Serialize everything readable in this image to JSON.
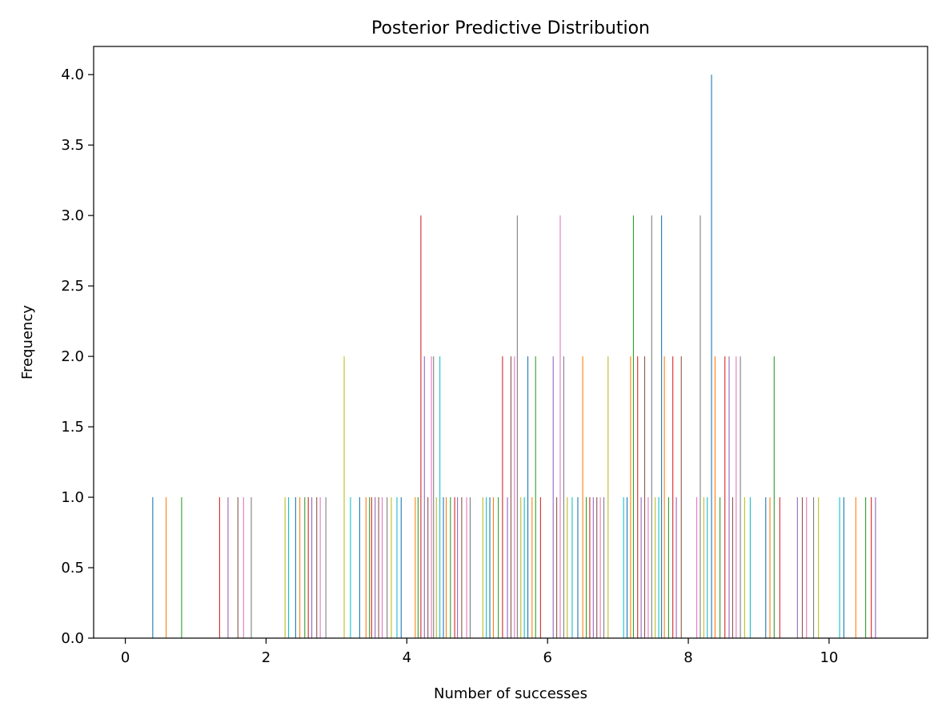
{
  "chart_data": {
    "type": "bar",
    "title": "Posterior Predictive Distribution",
    "xlabel": "Number of successes",
    "ylabel": "Frequency",
    "xlim": [
      -0.45,
      11.4
    ],
    "ylim": [
      0,
      4.2
    ],
    "x_ticks": [
      0,
      2,
      4,
      6,
      8,
      10
    ],
    "x_tick_labels": [
      "0",
      "2",
      "4",
      "6",
      "8",
      "10"
    ],
    "y_ticks": [
      0,
      0.5,
      1.0,
      1.5,
      2.0,
      2.5,
      3.0,
      3.5,
      4.0
    ],
    "y_tick_labels": [
      "0.0",
      "0.5",
      "1.0",
      "1.5",
      "2.0",
      "2.5",
      "3.0",
      "3.5",
      "4.0"
    ],
    "grid": false,
    "palette": [
      "#1f77b4",
      "#ff7f0e",
      "#2ca02c",
      "#d62728",
      "#9467bd",
      "#8c564b",
      "#e377c2",
      "#7f7f7f",
      "#bcbd22",
      "#17becf"
    ],
    "x": [
      0.39,
      0.58,
      0.8,
      1.34,
      1.46,
      1.6,
      1.68,
      1.79,
      2.27,
      2.32,
      2.42,
      2.48,
      2.55,
      2.6,
      2.65,
      2.72,
      2.77,
      2.85,
      3.11,
      3.2,
      3.33,
      3.42,
      3.47,
      3.5,
      3.55,
      3.6,
      3.65,
      3.72,
      3.78,
      3.86,
      3.92,
      4.12,
      4.16,
      4.2,
      4.25,
      4.3,
      4.35,
      4.38,
      4.42,
      4.47,
      4.52,
      4.56,
      4.62,
      4.68,
      4.72,
      4.78,
      4.85,
      4.9,
      5.08,
      5.13,
      5.18,
      5.23,
      5.3,
      5.36,
      5.43,
      5.48,
      5.53,
      5.57,
      5.62,
      5.67,
      5.72,
      5.78,
      5.83,
      5.9,
      6.08,
      6.13,
      6.18,
      6.23,
      6.28,
      6.35,
      6.43,
      6.5,
      6.55,
      6.6,
      6.65,
      6.7,
      6.75,
      6.8,
      6.86,
      7.08,
      7.13,
      7.18,
      7.22,
      7.28,
      7.33,
      7.38,
      7.43,
      7.48,
      7.53,
      7.58,
      7.62,
      7.66,
      7.72,
      7.78,
      7.83,
      7.9,
      8.12,
      8.17,
      8.22,
      8.27,
      8.33,
      8.38,
      8.45,
      8.52,
      8.58,
      8.63,
      8.68,
      8.74,
      8.8,
      8.88,
      9.1,
      9.16,
      9.22,
      9.3,
      9.55,
      9.62,
      9.68,
      9.78,
      9.85,
      10.15,
      10.21,
      10.38,
      10.52,
      10.6,
      10.66
    ],
    "values": [
      1,
      1,
      1,
      1,
      1,
      1,
      1,
      1,
      1,
      1,
      1,
      1,
      1,
      1,
      1,
      1,
      1,
      1,
      2,
      1,
      1,
      1,
      1,
      1,
      1,
      1,
      1,
      1,
      1,
      1,
      1,
      1,
      1,
      3,
      2,
      1,
      2,
      2,
      1,
      2,
      1,
      1,
      1,
      1,
      1,
      1,
      1,
      1,
      1,
      1,
      1,
      1,
      1,
      2,
      1,
      2,
      2,
      3,
      1,
      1,
      2,
      1,
      2,
      1,
      2,
      1,
      3,
      2,
      1,
      1,
      1,
      2,
      1,
      1,
      1,
      1,
      1,
      1,
      2,
      1,
      1,
      2,
      3,
      2,
      1,
      2,
      1,
      3,
      1,
      1,
      3,
      2,
      1,
      2,
      1,
      2,
      1,
      3,
      1,
      1,
      4,
      2,
      1,
      2,
      2,
      1,
      2,
      2,
      1,
      1,
      1,
      1,
      2,
      1,
      1,
      1,
      1,
      1,
      1,
      1,
      1,
      1,
      1,
      1,
      1
    ]
  }
}
